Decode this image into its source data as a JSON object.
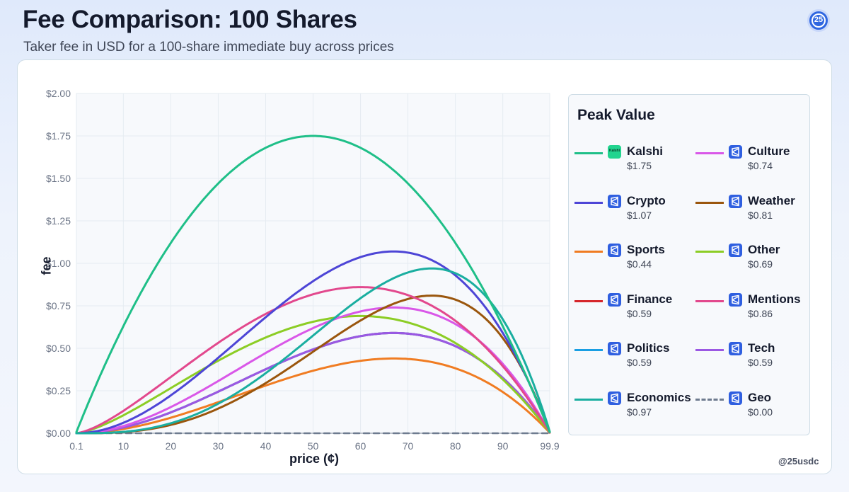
{
  "header": {
    "title": "Fee Comparison: 100 Shares",
    "subtitle": "Taker fee in USD for a 100-share immediate buy across prices",
    "badge": "25"
  },
  "credit": "@25usdc",
  "colors": {
    "grid": "#e6ecf2",
    "axis": "#7a8699",
    "plot_bg": "#f7f9fc"
  },
  "legend": {
    "title": "Peak Value",
    "items": [
      {
        "name": "Kalshi",
        "peak": "$1.75",
        "color": "#1fbf88",
        "icon": "kalshi-logo-icon"
      },
      {
        "name": "Culture",
        "peak": "$0.74",
        "color": "#d957e8",
        "icon": "platform-icon"
      },
      {
        "name": "Crypto",
        "peak": "$1.07",
        "color": "#4d45d6",
        "icon": "platform-icon"
      },
      {
        "name": "Weather",
        "peak": "$0.81",
        "color": "#9a560d",
        "icon": "platform-icon"
      },
      {
        "name": "Sports",
        "peak": "$0.44",
        "color": "#f07c22",
        "icon": "platform-icon"
      },
      {
        "name": "Other",
        "peak": "$0.69",
        "color": "#8ccd25",
        "icon": "platform-icon"
      },
      {
        "name": "Finance",
        "peak": "$0.59",
        "color": "#d6262b",
        "icon": "platform-icon"
      },
      {
        "name": "Mentions",
        "peak": "$0.86",
        "color": "#e2488d",
        "icon": "platform-icon"
      },
      {
        "name": "Politics",
        "peak": "$0.59",
        "color": "#1a9fe3",
        "icon": "platform-icon"
      },
      {
        "name": "Tech",
        "peak": "$0.59",
        "color": "#9b58e3",
        "icon": "platform-icon"
      },
      {
        "name": "Economics",
        "peak": "$0.97",
        "color": "#1aaea0",
        "icon": "platform-icon"
      },
      {
        "name": "Geo",
        "peak": "$0.00",
        "color": "#6e7b8f",
        "icon": "platform-icon",
        "dashed": true
      }
    ]
  },
  "chart_data": {
    "type": "line",
    "title": "Fee Comparison: 100 Shares",
    "xlabel": "price (¢)",
    "ylabel": "fee",
    "xlim": [
      0.1,
      99.9
    ],
    "ylim": [
      0,
      2.0
    ],
    "x_ticks": [
      0.1,
      10,
      20,
      30,
      40,
      50,
      60,
      70,
      80,
      90,
      99.9
    ],
    "x_tick_labels": [
      "0.1",
      "10",
      "20",
      "30",
      "40",
      "50",
      "60",
      "70",
      "80",
      "90",
      "99.9"
    ],
    "y_ticks": [
      0,
      0.25,
      0.5,
      0.75,
      1.0,
      1.25,
      1.5,
      1.75,
      2.0
    ],
    "y_tick_labels": [
      "$0.00",
      "$0.25",
      "$0.50",
      "$0.75",
      "$1.00",
      "$1.25",
      "$1.50",
      "$1.75",
      "$2.00"
    ],
    "grid": true,
    "legend_position": "right",
    "series": [
      {
        "name": "Kalshi",
        "peak": 1.75,
        "peak_at": 50
      },
      {
        "name": "Culture",
        "peak": 0.74,
        "peak_at": 67
      },
      {
        "name": "Crypto",
        "peak": 1.07,
        "peak_at": 67
      },
      {
        "name": "Weather",
        "peak": 0.81,
        "peak_at": 75
      },
      {
        "name": "Sports",
        "peak": 0.44,
        "peak_at": 67
      },
      {
        "name": "Other",
        "peak": 0.69,
        "peak_at": 60
      },
      {
        "name": "Finance",
        "peak": 0.59,
        "peak_at": 67
      },
      {
        "name": "Mentions",
        "peak": 0.86,
        "peak_at": 60
      },
      {
        "name": "Politics",
        "peak": 0.59,
        "peak_at": 67
      },
      {
        "name": "Tech",
        "peak": 0.59,
        "peak_at": 67
      },
      {
        "name": "Economics",
        "peak": 0.97,
        "peak_at": 75
      },
      {
        "name": "Geo",
        "peak": 0.0,
        "peak_at": 50
      }
    ]
  }
}
